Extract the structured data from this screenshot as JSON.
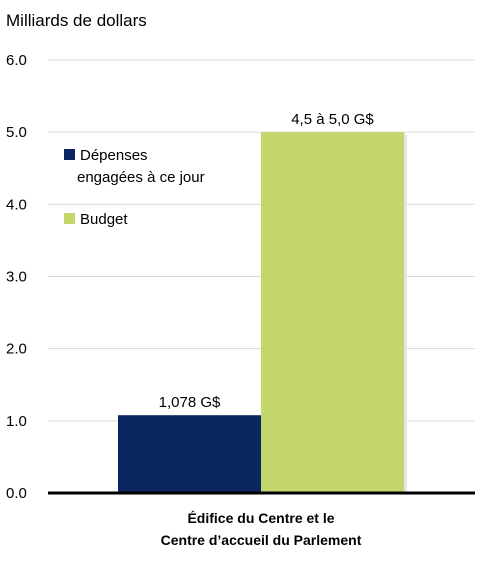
{
  "chart_data": {
    "type": "bar",
    "ylabel": "Milliards de dollars",
    "ylim": [
      0,
      6
    ],
    "yticks": [
      "0.0",
      "1.0",
      "2.0",
      "3.0",
      "4.0",
      "5.0",
      "6.0"
    ],
    "grid": true,
    "legend_position": "top-left",
    "categories": [
      "Édifice du Centre et le Centre d’accueil du Parlement"
    ],
    "category_label_lines": [
      "Édifice du Centre et le",
      "Centre d’accueil du Parlement"
    ],
    "series": [
      {
        "name": "Dépenses engagées à ce jour",
        "legend_lines": [
          "Dépenses",
          "engagées à ce jour"
        ],
        "values": [
          1.078
        ],
        "data_labels": [
          "1,078 G$"
        ],
        "color": "#0b2660"
      },
      {
        "name": "Budget",
        "legend_lines": [
          "Budget"
        ],
        "values": [
          5.0
        ],
        "data_labels": [
          "4,5 à 5,0 G$"
        ],
        "color": "#c3d66c"
      }
    ]
  }
}
